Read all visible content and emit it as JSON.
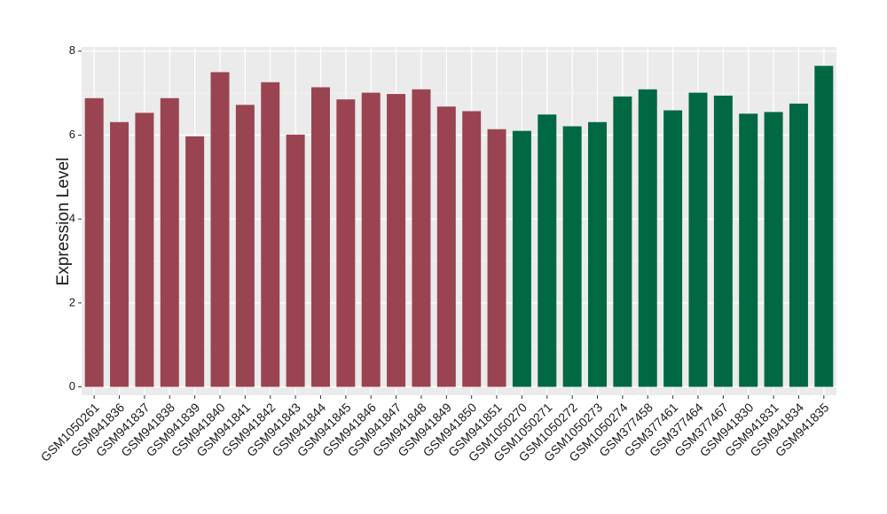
{
  "chart_data": {
    "type": "bar",
    "y_label": "Expression Level",
    "categories": [
      "GSM1050261",
      "GSM941836",
      "GSM941837",
      "GSM941838",
      "GSM941839",
      "GSM941840",
      "GSM941841",
      "GSM941842",
      "GSM941843",
      "GSM941844",
      "GSM941845",
      "GSM941846",
      "GSM941847",
      "GSM941848",
      "GSM941849",
      "GSM941850",
      "GSM941851",
      "GSM1050270",
      "GSM1050271",
      "GSM1050272",
      "GSM1050273",
      "GSM1050274",
      "GSM377458",
      "GSM377461",
      "GSM377464",
      "GSM377467",
      "GSM941830",
      "GSM941831",
      "GSM941834",
      "GSM941835"
    ],
    "values": [
      6.88,
      6.31,
      6.53,
      6.88,
      5.97,
      7.5,
      6.72,
      7.26,
      6.01,
      7.14,
      6.85,
      7.01,
      6.98,
      7.09,
      6.68,
      6.57,
      6.14,
      6.1,
      6.49,
      6.21,
      6.31,
      6.92,
      7.09,
      6.59,
      7.01,
      6.94,
      6.51,
      6.55,
      6.75,
      7.65
    ],
    "colors": [
      "#9a4451",
      "#9a4451",
      "#9a4451",
      "#9a4451",
      "#9a4451",
      "#9a4451",
      "#9a4451",
      "#9a4451",
      "#9a4451",
      "#9a4451",
      "#9a4451",
      "#9a4451",
      "#9a4451",
      "#9a4451",
      "#9a4451",
      "#9a4451",
      "#9a4451",
      "#016844",
      "#016844",
      "#016844",
      "#016844",
      "#016844",
      "#016844",
      "#016844",
      "#016844",
      "#016844",
      "#016844",
      "#016844",
      "#016844",
      "#016844"
    ],
    "ylim": [
      -0.2,
      8.1
    ],
    "yticks": [
      0,
      2,
      4,
      6,
      8
    ],
    "grid": true
  }
}
